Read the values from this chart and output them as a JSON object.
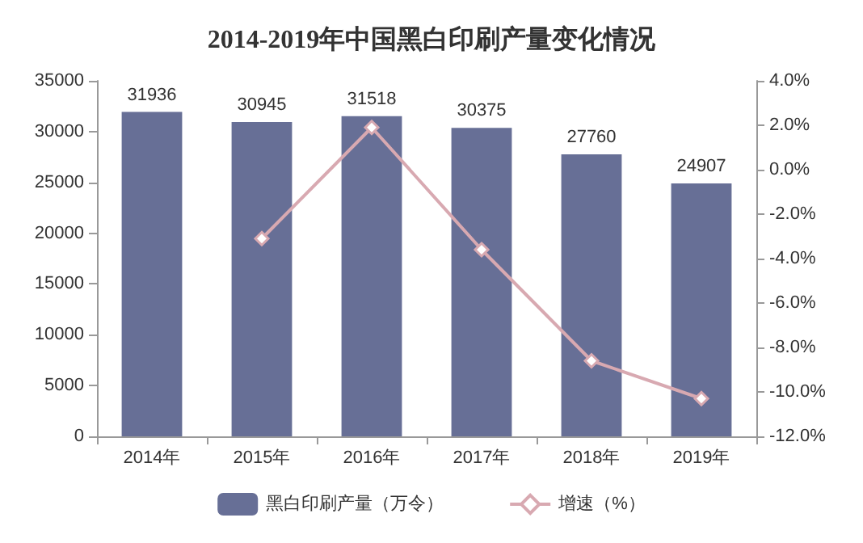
{
  "chart_data": {
    "type": "bar",
    "title": "2014-2019年中国黑白印刷产量变化情况",
    "categories": [
      "2014年",
      "2015年",
      "2016年",
      "2017年",
      "2018年",
      "2019年"
    ],
    "series": [
      {
        "name": "黑白印刷产量（万令）",
        "color": "#676f96",
        "values": [
          31936,
          30945,
          31518,
          30375,
          27760,
          24907
        ],
        "data_labels": true
      },
      {
        "name": "增速（%）",
        "type": "line",
        "axis": "y2",
        "color": "#d8a9b1",
        "marker": "diamond",
        "values": [
          null,
          -3.1,
          1.9,
          -3.6,
          -8.6,
          -10.3
        ]
      }
    ],
    "ylim": [
      0,
      35000
    ],
    "yticks": [
      0,
      5000,
      10000,
      15000,
      20000,
      25000,
      30000,
      35000
    ],
    "y2lim": [
      -12,
      4
    ],
    "y2ticks": [
      {
        "value": -12,
        "label": "-12.0%"
      },
      {
        "value": -10,
        "label": "-10.0%"
      },
      {
        "value": -8,
        "label": "-8.0%"
      },
      {
        "value": -6,
        "label": "-6.0%"
      },
      {
        "value": -4,
        "label": "-4.0%"
      },
      {
        "value": -2,
        "label": "-2.0%"
      },
      {
        "value": 0,
        "label": "0.0%"
      },
      {
        "value": 2,
        "label": "2.0%"
      },
      {
        "value": 4,
        "label": "4.0%"
      }
    ],
    "legend": "bottom",
    "grid": false
  }
}
